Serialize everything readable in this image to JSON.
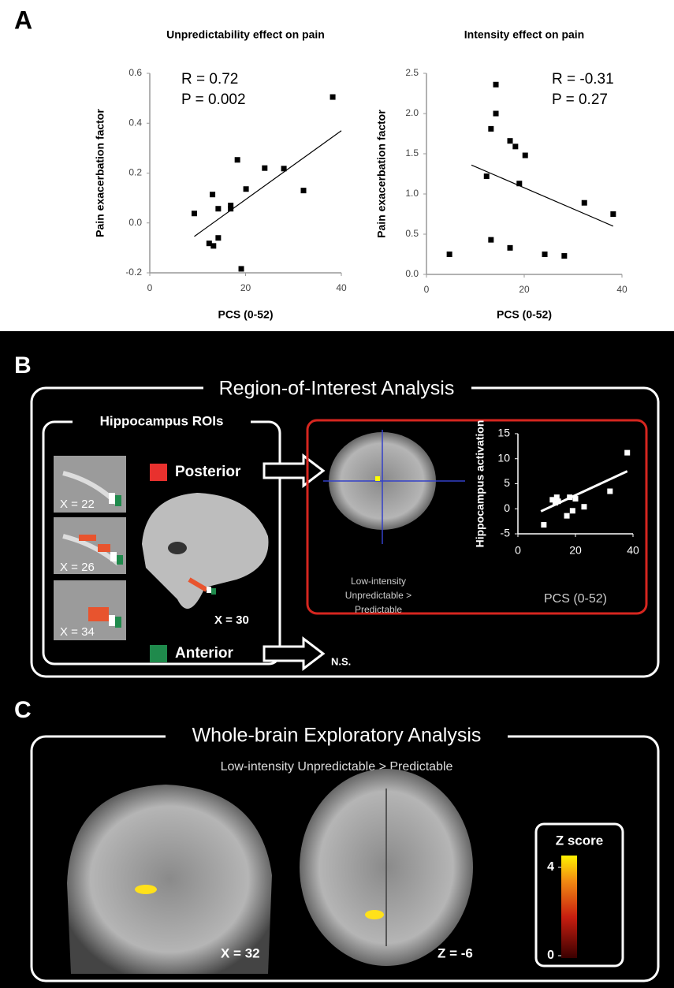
{
  "panels": {
    "a": "A",
    "b": "B",
    "c": "C"
  },
  "chart_data": [
    {
      "type": "scatter",
      "title": "Unpredictability effect on pain",
      "xlabel": "PCS (0-52)",
      "ylabel": "Pain exacerbation factor",
      "annotations": [
        "R = 0.72",
        "P = 0.002"
      ],
      "x": [
        9.3,
        13.1,
        14.3,
        12.4,
        13.3,
        14.3,
        18.3,
        16.9,
        16.9,
        20.1,
        19.1,
        24.0,
        28.0,
        32.1,
        38.2
      ],
      "values": [
        0.038,
        0.114,
        0.057,
        -0.082,
        -0.092,
        -0.06,
        0.253,
        0.07,
        0.057,
        0.136,
        -0.184,
        0.22,
        0.218,
        0.13,
        0.505
      ],
      "trendline": {
        "x": [
          9.3,
          40
        ],
        "values": [
          -0.054,
          0.37
        ]
      },
      "color": "#000000",
      "xlim": [
        0,
        40
      ],
      "xticks": [
        0,
        20,
        40
      ],
      "ylim": [
        -0.2,
        0.6
      ],
      "yticks": [
        -0.2,
        {
          "value": 0,
          "label": "0.0"
        },
        0.2,
        0.4,
        0.6
      ]
    },
    {
      "type": "scatter",
      "title": "Intensity effect on pain",
      "xlabel": "PCS (0-52)",
      "ylabel": "Pain exacerbation factor",
      "annotations": [
        "R = -0.31",
        "P = 0.27"
      ],
      "x": [
        4.7,
        12.3,
        13.2,
        13.2,
        14.2,
        14.2,
        17.1,
        17.1,
        18.2,
        19.0,
        20.2,
        24.2,
        28.2,
        32.3,
        38.2
      ],
      "values": [
        0.25,
        1.22,
        1.81,
        0.43,
        2.36,
        2.0,
        1.66,
        0.33,
        1.59,
        1.13,
        1.48,
        0.25,
        0.23,
        0.89,
        0.75
      ],
      "trendline": {
        "x": [
          9.2,
          38.2
        ],
        "values": [
          1.36,
          0.6
        ]
      },
      "color": "#000000",
      "xlim": [
        0,
        40
      ],
      "xticks": [
        0,
        20,
        40
      ],
      "ylim": [
        0,
        2.5
      ],
      "yticks": [
        {
          "value": 0,
          "label": "0.0"
        },
        0.5,
        {
          "value": 1,
          "label": "1.0"
        },
        1.5,
        {
          "value": 2,
          "label": "2.0"
        },
        2.5
      ]
    },
    {
      "type": "scatter",
      "xlabel": "PCS (0-52)",
      "ylabel": "Hippocampus activation",
      "x": [
        9,
        12,
        13,
        13.5,
        14,
        17,
        18,
        19,
        20,
        23,
        32,
        38
      ],
      "values": [
        -3.2,
        1.8,
        1.2,
        2.3,
        1.5,
        -1.4,
        2.3,
        -0.4,
        2.0,
        0.4,
        3.5,
        11.2
      ],
      "trendline": {
        "x": [
          8,
          38
        ],
        "values": [
          -0.5,
          7.5
        ]
      },
      "color": "#ffffff",
      "xlim": [
        0,
        40
      ],
      "xticks": [
        0,
        20,
        40
      ],
      "ylim": [
        -5,
        15
      ],
      "yticks": [
        -5,
        0,
        5,
        10,
        15
      ]
    }
  ],
  "roi": {
    "title": "Region-of-Interest Analysis",
    "subtitle": "Hippocampus ROIs",
    "slices": [
      "X = 22",
      "X = 26",
      "X = 34"
    ],
    "sagittal": "X = 30",
    "posterior": "Posterior",
    "anterior": "Anterior",
    "ns": "N.S.",
    "contrast": [
      "Low-intensity",
      "Unpredictable >",
      "Predictable"
    ]
  },
  "whole_brain": {
    "title": "Whole-brain Exploratory Analysis",
    "contrast": "Low-intensity Unpredictable > Predictable",
    "sagittal": "X = 32",
    "axial": "Z = -6",
    "colorbar": {
      "title": "Z score",
      "ticks": [
        0,
        4
      ]
    }
  }
}
